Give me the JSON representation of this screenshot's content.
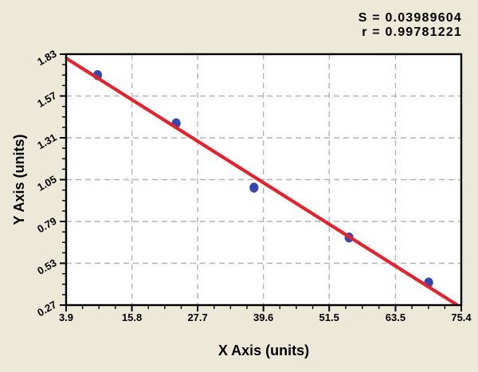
{
  "colors": {
    "background": "#ece9d8",
    "plot_background": "#ffffff",
    "frame": "#000000",
    "grid": "#b3b3b3",
    "regression_line": "#e8202a",
    "data_point": "#3348b0",
    "text": "#000000"
  },
  "stats": {
    "s_line": "S = 0.03989604",
    "r_line": "r = 0.99781221"
  },
  "chart_data": {
    "type": "scatter",
    "title": "",
    "xlabel": "X Axis (units)",
    "ylabel": "Y Axis (units)",
    "xlim": [
      3.9,
      75.4
    ],
    "ylim": [
      0.27,
      1.83
    ],
    "x_tick_labels": [
      "3.9",
      "15.8",
      "27.7",
      "39.6",
      "51.5",
      "63.5",
      "75.4"
    ],
    "y_tick_labels": [
      "0.27",
      "0.53",
      "0.79",
      "1.05",
      "1.31",
      "1.57",
      "1.83"
    ],
    "minor_ticks_between_majors": 3,
    "grid": "gray dashed lines at interior major ticks, plot framed in black",
    "legend": "none",
    "points": [
      {
        "x": 9.6,
        "y": 1.7
      },
      {
        "x": 23.8,
        "y": 1.4
      },
      {
        "x": 37.9,
        "y": 1.0
      },
      {
        "x": 55.1,
        "y": 0.69
      },
      {
        "x": 69.5,
        "y": 0.41
      }
    ],
    "fit_line": {
      "x_start": 3.9,
      "y_start": 1.805,
      "x_end": 74.7,
      "y_end": 0.27
    },
    "stats": {
      "S": 0.03989604,
      "r": 0.99781221
    }
  }
}
